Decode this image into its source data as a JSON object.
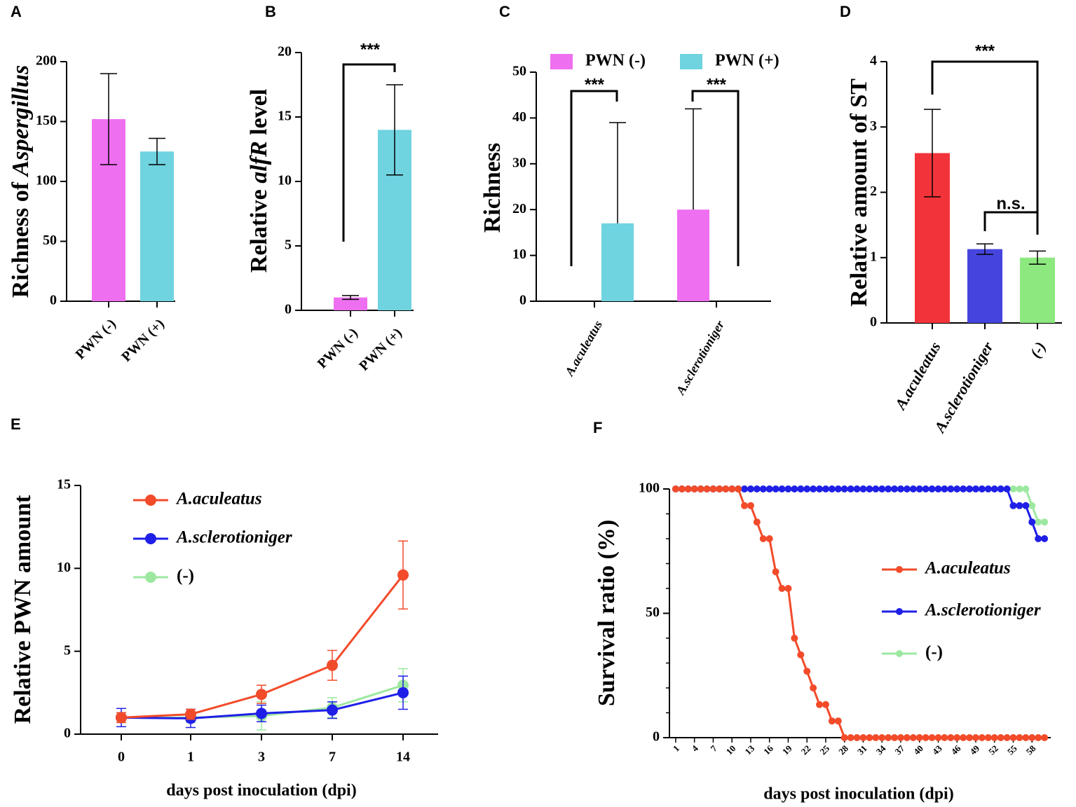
{
  "chart_data": [
    {
      "panel": "A",
      "type": "bar",
      "ylabel": [
        "Richness of ",
        "Aspergillus"
      ],
      "ylabel_italic": [
        false,
        true
      ],
      "categories": [
        "PWN (-)",
        "PWN (+)"
      ],
      "values": [
        152,
        125
      ],
      "errors": [
        38,
        11
      ],
      "colors": [
        "#ee6ff0",
        "#6fd3e0"
      ],
      "ylim": [
        0,
        200
      ],
      "yticks": [
        0,
        50,
        100,
        150,
        200
      ]
    },
    {
      "panel": "B",
      "type": "bar",
      "ylabel": [
        "Relative ",
        "alfR",
        " level"
      ],
      "ylabel_italic": [
        false,
        true,
        false
      ],
      "categories": [
        "PWN (-)",
        "PWN (+)"
      ],
      "values": [
        1,
        14
      ],
      "errors": [
        0.15,
        3.5
      ],
      "colors": [
        "#ee6ff0",
        "#6fd3e0"
      ],
      "ylim": [
        0,
        20
      ],
      "yticks": [
        0,
        5,
        10,
        15,
        20
      ],
      "annotations": [
        "***"
      ]
    },
    {
      "panel": "C",
      "type": "grouped_bar",
      "ylabel": [
        "Richness"
      ],
      "ylabel_italic": [
        false
      ],
      "categories": [
        "A.aculeatus",
        "A.sclerotioniger"
      ],
      "category_italic": true,
      "error_bars": "upper",
      "series": [
        {
          "name": "PWN (-)",
          "color": "#ee6ff0",
          "values": [
            0,
            20
          ],
          "errors": [
            null,
            22
          ]
        },
        {
          "name": "PWN (+)",
          "color": "#6fd3e0",
          "values": [
            17,
            0
          ],
          "errors": [
            22,
            null
          ]
        }
      ],
      "ylim": [
        0,
        50
      ],
      "yticks": [
        0,
        10,
        20,
        30,
        40,
        50
      ],
      "annotations": [
        "***",
        "***"
      ]
    },
    {
      "panel": "D",
      "type": "bar",
      "ylabel": [
        "Relative amount of ST"
      ],
      "ylabel_italic": [
        false
      ],
      "categories": [
        "A.aculeatus",
        "A.sclerotioniger",
        "(-)"
      ],
      "category_italic": true,
      "values": [
        2.6,
        1.13,
        1.0
      ],
      "errors": [
        0.67,
        0.08,
        0.1
      ],
      "colors": [
        "#f2343a",
        "#4545dd",
        "#8de87f"
      ],
      "ylim": [
        0,
        4
      ],
      "yticks": [
        0,
        1,
        2,
        3,
        4
      ],
      "annotations": [
        "***",
        "n.s."
      ]
    },
    {
      "panel": "E",
      "type": "line",
      "ylabel": [
        "Relative PWN amount"
      ],
      "ylabel_italic": [
        false
      ],
      "xlabel": "days post inoculation (dpi)",
      "categories": [
        "0",
        "1",
        "3",
        "7",
        "14"
      ],
      "series": [
        {
          "name": "A.aculeatus",
          "italic": true,
          "color": "#f24b2a",
          "values": [
            1.0,
            1.2,
            2.4,
            4.15,
            9.6
          ],
          "errors": [
            0.3,
            0.3,
            0.55,
            0.9,
            2.05
          ]
        },
        {
          "name": "A.sclerotioniger",
          "italic": true,
          "color": "#1f1fe8",
          "values": [
            1.0,
            0.95,
            1.25,
            1.45,
            2.5
          ],
          "errors": [
            0.55,
            0.55,
            0.5,
            0.5,
            1.0
          ]
        },
        {
          "name": "(-)",
          "italic": false,
          "color": "#9de8a0",
          "values": [
            1.0,
            1.0,
            1.1,
            1.6,
            2.95
          ],
          "errors": [
            0.3,
            0.3,
            0.85,
            0.6,
            1.0
          ]
        }
      ],
      "ylim": [
        0,
        15
      ],
      "yticks": [
        0,
        5,
        10,
        15
      ]
    },
    {
      "panel": "F",
      "type": "scatter_line",
      "ylabel": [
        "Survival ratio (%)"
      ],
      "ylabel_italic": [
        false
      ],
      "xlabel": "days post inoculation (dpi)",
      "x": [
        1,
        2,
        3,
        4,
        5,
        6,
        7,
        8,
        9,
        10,
        11,
        12,
        13,
        14,
        15,
        16,
        17,
        18,
        19,
        20,
        21,
        22,
        23,
        24,
        25,
        26,
        27,
        28,
        29,
        30,
        31,
        32,
        33,
        34,
        35,
        36,
        37,
        38,
        39,
        40,
        41,
        42,
        43,
        44,
        45,
        46,
        47,
        48,
        49,
        50,
        51,
        52,
        53,
        54,
        55,
        56,
        57,
        58,
        59,
        60
      ],
      "series": [
        {
          "name": "A.aculeatus",
          "italic": true,
          "color": "#f24b2a",
          "values": [
            100,
            100,
            100,
            100,
            100,
            100,
            100,
            100,
            100,
            100,
            100,
            93.3,
            93.3,
            86.7,
            80,
            80,
            66.7,
            60,
            60,
            40,
            33.3,
            26.7,
            20,
            13.3,
            13.3,
            6.7,
            6.7,
            0,
            0,
            0,
            0,
            0,
            0,
            0,
            0,
            0,
            0,
            0,
            0,
            0,
            0,
            0,
            0,
            0,
            0,
            0,
            0,
            0,
            0,
            0,
            0,
            0,
            0,
            0,
            0,
            0,
            0,
            0,
            0,
            0
          ]
        },
        {
          "name": "A.sclerotioniger",
          "italic": true,
          "color": "#1f1fe8",
          "values": [
            100,
            100,
            100,
            100,
            100,
            100,
            100,
            100,
            100,
            100,
            100,
            100,
            100,
            100,
            100,
            100,
            100,
            100,
            100,
            100,
            100,
            100,
            100,
            100,
            100,
            100,
            100,
            100,
            100,
            100,
            100,
            100,
            100,
            100,
            100,
            100,
            100,
            100,
            100,
            100,
            100,
            100,
            100,
            100,
            100,
            100,
            100,
            100,
            100,
            100,
            100,
            100,
            100,
            100,
            93.3,
            93.3,
            93.3,
            86.7,
            80,
            80
          ]
        },
        {
          "name": "(-)",
          "italic": false,
          "color": "#9de8a0",
          "values": [
            100,
            100,
            100,
            100,
            100,
            100,
            100,
            100,
            100,
            100,
            100,
            100,
            100,
            100,
            100,
            100,
            100,
            100,
            100,
            100,
            100,
            100,
            100,
            100,
            100,
            100,
            100,
            100,
            100,
            100,
            100,
            100,
            100,
            100,
            100,
            100,
            100,
            100,
            100,
            100,
            100,
            100,
            100,
            100,
            100,
            100,
            100,
            100,
            100,
            100,
            100,
            100,
            100,
            100,
            100,
            100,
            100,
            93.3,
            86.7,
            86.7
          ]
        }
      ],
      "xlim": [
        0,
        61
      ],
      "xticks": [
        1,
        4,
        7,
        10,
        13,
        16,
        19,
        22,
        25,
        28,
        31,
        34,
        37,
        40,
        43,
        46,
        49,
        52,
        55,
        58
      ],
      "ylim": [
        0,
        100
      ],
      "yticks": [
        0,
        50,
        100
      ],
      "yminorticks": [
        10,
        20,
        30,
        40,
        60,
        70,
        80,
        90
      ]
    }
  ]
}
